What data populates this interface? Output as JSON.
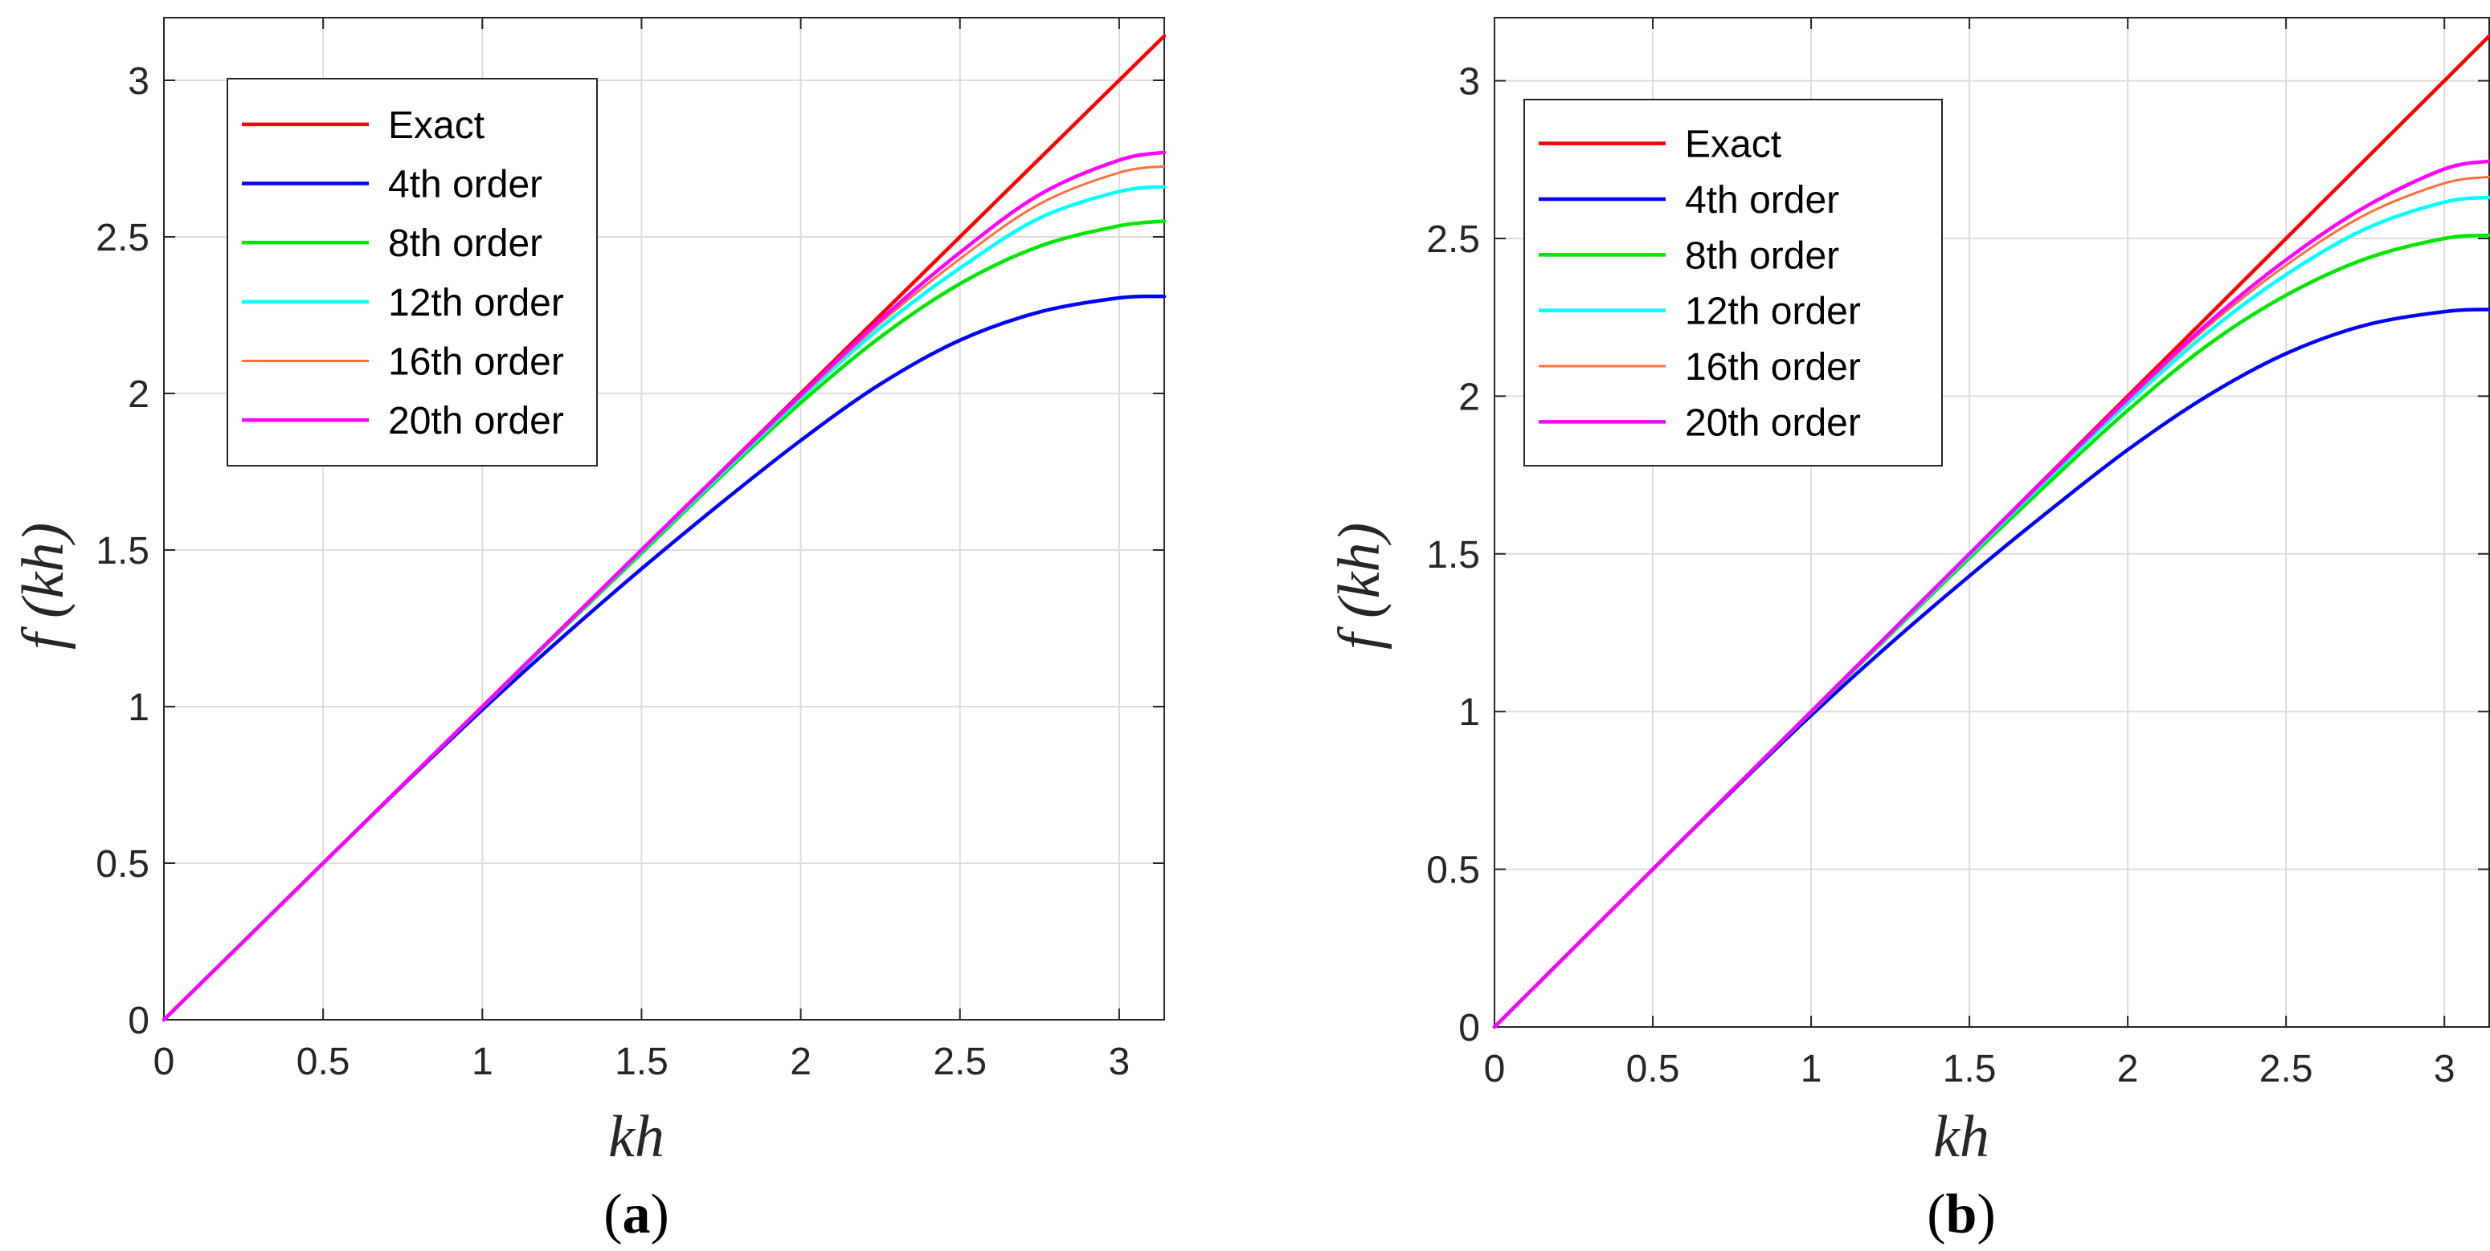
{
  "chart_data": [
    {
      "type": "line",
      "panel_label": "a",
      "title": "",
      "xlabel": "kh",
      "ylabel": "f (kh)",
      "xlim": [
        0,
        3.1416
      ],
      "ylim": [
        0,
        3.2
      ],
      "xticks": [
        0,
        0.5,
        1,
        1.5,
        2,
        2.5,
        3
      ],
      "xtick_labels": [
        "0",
        "0.5",
        "1",
        "1.5",
        "2",
        "2.5",
        "3"
      ],
      "yticks": [
        0,
        0.5,
        1,
        1.5,
        2,
        2.5,
        3
      ],
      "ytick_labels": [
        "0",
        "0.5",
        "1",
        "1.5",
        "2",
        "2.5",
        "3"
      ],
      "grid": true,
      "legend_position": "top-left",
      "x": [
        0,
        0.25,
        0.5,
        0.75,
        1.0,
        1.25,
        1.5,
        1.75,
        2.0,
        2.25,
        2.5,
        2.75,
        3.0,
        3.1416
      ],
      "series": [
        {
          "name": "Exact",
          "color": "#ff0000",
          "values": [
            0,
            0.25,
            0.5,
            0.75,
            1.0,
            1.25,
            1.5,
            1.75,
            2.0,
            2.25,
            2.5,
            2.75,
            3.0,
            3.1416
          ]
        },
        {
          "name": "4th order",
          "color": "#0000ff",
          "values": [
            0,
            0.25,
            0.5,
            0.748,
            0.99,
            1.22,
            1.44,
            1.65,
            1.85,
            2.03,
            2.17,
            2.26,
            2.305,
            2.31
          ]
        },
        {
          "name": "8th order",
          "color": "#00e600",
          "values": [
            0,
            0.25,
            0.5,
            0.75,
            0.999,
            1.246,
            1.49,
            1.735,
            1.97,
            2.18,
            2.35,
            2.47,
            2.535,
            2.55
          ]
        },
        {
          "name": "12th order",
          "color": "#00ffff",
          "values": [
            0,
            0.25,
            0.5,
            0.75,
            1.0,
            1.249,
            1.497,
            1.743,
            1.985,
            2.21,
            2.4,
            2.56,
            2.645,
            2.66
          ]
        },
        {
          "name": "16th order",
          "color": "#ff6e3a",
          "values": [
            0,
            0.25,
            0.5,
            0.75,
            1.0,
            1.25,
            1.499,
            1.747,
            1.99,
            2.225,
            2.43,
            2.605,
            2.705,
            2.725
          ]
        },
        {
          "name": "20th order",
          "color": "#ff00ff",
          "values": [
            0,
            0.25,
            0.5,
            0.75,
            1.0,
            1.25,
            1.5,
            1.749,
            1.995,
            2.235,
            2.45,
            2.635,
            2.745,
            2.77
          ]
        }
      ]
    },
    {
      "type": "line",
      "panel_label": "b",
      "title": "",
      "xlabel": "kh",
      "ylabel": "f (kh)",
      "xlim": [
        0,
        3.1416
      ],
      "ylim": [
        0,
        3.2
      ],
      "xticks": [
        0,
        0.5,
        1,
        1.5,
        2,
        2.5,
        3
      ],
      "xtick_labels": [
        "0",
        "0.5",
        "1",
        "1.5",
        "2",
        "2.5",
        "3"
      ],
      "yticks": [
        0,
        0.5,
        1,
        1.5,
        2,
        2.5,
        3
      ],
      "ytick_labels": [
        "0",
        "0.5",
        "1",
        "1.5",
        "2",
        "2.5",
        "3"
      ],
      "grid": true,
      "legend_position": "top-left",
      "x": [
        0,
        0.25,
        0.5,
        0.75,
        1.0,
        1.25,
        1.5,
        1.75,
        2.0,
        2.25,
        2.5,
        2.75,
        3.0,
        3.1416
      ],
      "series": [
        {
          "name": "Exact",
          "color": "#ff0000",
          "values": [
            0,
            0.25,
            0.5,
            0.75,
            1.0,
            1.25,
            1.5,
            1.75,
            2.0,
            2.25,
            2.5,
            2.75,
            3.0,
            3.1416
          ]
        },
        {
          "name": "4th order",
          "color": "#0000ff",
          "values": [
            0,
            0.25,
            0.5,
            0.747,
            0.988,
            1.215,
            1.43,
            1.635,
            1.83,
            2.0,
            2.135,
            2.225,
            2.268,
            2.275
          ]
        },
        {
          "name": "8th order",
          "color": "#00e600",
          "values": [
            0,
            0.25,
            0.5,
            0.75,
            0.998,
            1.244,
            1.487,
            1.725,
            1.955,
            2.16,
            2.32,
            2.435,
            2.5,
            2.51
          ]
        },
        {
          "name": "12th order",
          "color": "#00ffff",
          "values": [
            0,
            0.25,
            0.5,
            0.75,
            1.0,
            1.248,
            1.495,
            1.74,
            1.978,
            2.2,
            2.385,
            2.53,
            2.615,
            2.63
          ]
        },
        {
          "name": "16th order",
          "color": "#ff6e3a",
          "values": [
            0,
            0.25,
            0.5,
            0.75,
            1.0,
            1.25,
            1.498,
            1.745,
            1.987,
            2.218,
            2.415,
            2.575,
            2.675,
            2.695
          ]
        },
        {
          "name": "20th order",
          "color": "#ff00ff",
          "values": [
            0,
            0.25,
            0.5,
            0.75,
            1.0,
            1.25,
            1.5,
            1.748,
            1.992,
            2.228,
            2.432,
            2.6,
            2.72,
            2.745
          ]
        }
      ]
    }
  ]
}
